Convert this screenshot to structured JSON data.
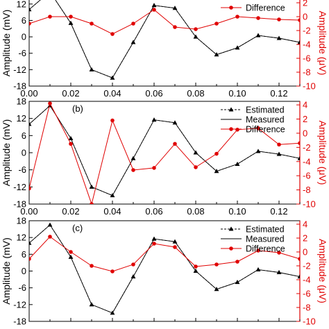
{
  "chart_data": [
    {
      "type": "line",
      "panel_label": "",
      "x_axis": {
        "lim": [
          0.0,
          0.13
        ],
        "ticks": [
          0.0,
          0.02,
          0.04,
          0.06,
          0.08,
          0.1,
          0.12
        ],
        "tick_labels": [
          "0.00",
          "0.02",
          "0.04",
          "0.06",
          "0.08",
          "0.10",
          "0.12"
        ]
      },
      "y_left": {
        "label": "Amplitude (mV)",
        "lim": [
          -18,
          18
        ],
        "ticks": [
          12,
          6,
          0,
          -6,
          -12,
          -18
        ],
        "tick_labels": [
          "12",
          "6",
          "0",
          "-6",
          "-12",
          "-18"
        ]
      },
      "y_right": {
        "label": "Amplitude (μV)",
        "lim": [
          -10,
          4
        ],
        "ticks": [
          2,
          0,
          -2,
          -4,
          -6,
          -8,
          -10
        ],
        "tick_labels": [
          "2",
          "0",
          "-2",
          "-4",
          "-6",
          "-8",
          "-10"
        ],
        "color": "#e00000"
      },
      "legend": {
        "position": "top-right",
        "entries": [
          "Difference"
        ]
      },
      "series": [
        {
          "name": "Estimated",
          "axis": "left",
          "color": "#000000",
          "marker": "triangle",
          "line": "dash",
          "x": [
            0.0,
            0.01,
            0.02,
            0.03,
            0.04,
            0.05,
            0.06,
            0.07,
            0.08,
            0.09,
            0.1,
            0.11,
            0.12,
            0.13
          ],
          "y": [
            10,
            16.5,
            5,
            -12,
            -15,
            -2,
            11.5,
            10.5,
            0,
            -6.5,
            -4,
            0.5,
            -0.5,
            -2
          ]
        },
        {
          "name": "Measured",
          "axis": "left",
          "color": "#000000",
          "marker": "none",
          "line": "solid",
          "x": [
            0.0,
            0.01,
            0.02,
            0.03,
            0.04,
            0.05,
            0.06,
            0.07,
            0.08,
            0.09,
            0.1,
            0.11,
            0.12,
            0.13
          ],
          "y": [
            10,
            16.5,
            5,
            -12,
            -15,
            -2,
            11.5,
            10.5,
            0,
            -6.5,
            -4,
            0.5,
            -0.5,
            -2
          ]
        },
        {
          "name": "Difference",
          "axis": "right",
          "color": "#e00000",
          "marker": "circle",
          "line": "solid",
          "x": [
            0.0,
            0.01,
            0.02,
            0.03,
            0.04,
            0.05,
            0.06,
            0.07,
            0.08,
            0.09,
            0.1,
            0.11,
            0.12,
            0.13
          ],
          "y": [
            -1.0,
            0.0,
            0.0,
            -1.0,
            -2.5,
            -1.0,
            1.0,
            -1.5,
            -1.8,
            -1.0,
            0.0,
            -0.2,
            -0.4,
            -0.5
          ]
        }
      ]
    },
    {
      "type": "line",
      "panel_label": "(b)",
      "x_axis": {
        "lim": [
          0.0,
          0.13
        ],
        "ticks": [
          0.0,
          0.02,
          0.04,
          0.06,
          0.08,
          0.1,
          0.12
        ],
        "tick_labels": [
          "0.00",
          "0.02",
          "0.04",
          "0.06",
          "0.08",
          "0.10",
          "0.12"
        ]
      },
      "y_left": {
        "label": "Amplitude (mV)",
        "lim": [
          -18,
          18
        ],
        "ticks": [
          18,
          12,
          6,
          0,
          -6,
          -12,
          -18
        ],
        "tick_labels": [
          "18",
          "12",
          "6",
          "0",
          "-6",
          "-12",
          "-18"
        ]
      },
      "y_right": {
        "label": "Amplitude (μV)",
        "lim": [
          -10,
          4.5
        ],
        "ticks": [
          4,
          2,
          0,
          -2,
          -4,
          -6,
          -8,
          -10
        ],
        "tick_labels": [
          "4",
          "2",
          "0",
          "-2",
          "-4",
          "-6",
          "-8",
          "-10"
        ],
        "color": "#e00000"
      },
      "legend": {
        "position": "top-right",
        "entries": [
          "Estimated",
          "Measured",
          "Difference"
        ]
      },
      "series": [
        {
          "name": "Estimated",
          "axis": "left",
          "color": "#000000",
          "marker": "triangle",
          "line": "dash",
          "x": [
            0.0,
            0.01,
            0.02,
            0.03,
            0.04,
            0.05,
            0.06,
            0.07,
            0.08,
            0.09,
            0.1,
            0.11,
            0.12,
            0.13
          ],
          "y": [
            10,
            16.5,
            5,
            -12,
            -15,
            -2,
            11.5,
            10.5,
            0,
            -6.5,
            -4,
            0.5,
            -0.5,
            -2
          ]
        },
        {
          "name": "Measured",
          "axis": "left",
          "color": "#000000",
          "marker": "none",
          "line": "solid",
          "x": [
            0.0,
            0.01,
            0.02,
            0.03,
            0.04,
            0.05,
            0.06,
            0.07,
            0.08,
            0.09,
            0.1,
            0.11,
            0.12,
            0.13
          ],
          "y": [
            10,
            16.5,
            5,
            -12,
            -15,
            -2,
            11.5,
            10.5,
            0,
            -6.5,
            -4,
            0.5,
            -0.5,
            -2
          ]
        },
        {
          "name": "Difference",
          "axis": "right",
          "color": "#e00000",
          "marker": "circle",
          "line": "solid",
          "x": [
            0.0,
            0.01,
            0.02,
            0.03,
            0.04,
            0.05,
            0.06,
            0.07,
            0.08,
            0.09,
            0.1,
            0.11,
            0.12,
            0.13
          ],
          "y": [
            -7.8,
            4.2,
            -1.5,
            -10,
            1.8,
            -5.2,
            -4.9,
            -1.5,
            -4.8,
            -2.9,
            0.5,
            0.7,
            -1.6,
            -1.4
          ]
        }
      ]
    },
    {
      "type": "line",
      "panel_label": "(c)",
      "x_axis": {
        "lim": [
          0.0,
          0.13
        ],
        "ticks": [
          0.0,
          0.02,
          0.04,
          0.06,
          0.08,
          0.1,
          0.12
        ],
        "tick_labels": [],
        "tick_labels_cut_off": true
      },
      "y_left": {
        "label": "Amplitude (mV)",
        "lim": [
          -18,
          18
        ],
        "ticks": [
          18,
          12,
          6,
          0,
          -6,
          -12,
          -18
        ],
        "tick_labels": [
          "18",
          "12",
          "6",
          "0",
          "-6",
          "-12",
          "-18"
        ]
      },
      "y_right": {
        "label": "Amplitude (μV)",
        "lim": [
          -10,
          4.5
        ],
        "ticks": [
          4,
          2,
          0,
          -2,
          -4,
          -6,
          -8,
          -10
        ],
        "tick_labels": [
          "4",
          "2",
          "0",
          "-2",
          "-4",
          "-6",
          "-8",
          "-10"
        ],
        "color": "#e00000"
      },
      "legend": {
        "position": "top-right",
        "entries": [
          "Estimated",
          "Measured",
          "Difference"
        ]
      },
      "series": [
        {
          "name": "Estimated",
          "axis": "left",
          "color": "#000000",
          "marker": "triangle",
          "line": "dash",
          "x": [
            0.0,
            0.01,
            0.02,
            0.03,
            0.04,
            0.05,
            0.06,
            0.07,
            0.08,
            0.09,
            0.1,
            0.11,
            0.12,
            0.13
          ],
          "y": [
            10,
            16.5,
            5,
            -12,
            -15,
            -2,
            11.5,
            10.5,
            0,
            -6.5,
            -4,
            0.5,
            -0.5,
            -2
          ]
        },
        {
          "name": "Measured",
          "axis": "left",
          "color": "#000000",
          "marker": "none",
          "line": "solid",
          "x": [
            0.0,
            0.01,
            0.02,
            0.03,
            0.04,
            0.05,
            0.06,
            0.07,
            0.08,
            0.09,
            0.1,
            0.11,
            0.12,
            0.13
          ],
          "y": [
            10,
            16.5,
            5,
            -12,
            -15,
            -2,
            11.5,
            10.5,
            0,
            -6.5,
            -4,
            0.5,
            -0.5,
            -2
          ]
        },
        {
          "name": "Difference",
          "axis": "right",
          "color": "#e00000",
          "marker": "circle",
          "line": "solid",
          "x": [
            0.0,
            0.01,
            0.02,
            0.03,
            0.04,
            0.05,
            0.06,
            0.07,
            0.08,
            0.09,
            0.1,
            0.11,
            0.12,
            0.13
          ],
          "y": [
            -1.0,
            2.2,
            0.0,
            -2.0,
            -2.8,
            -1.8,
            1.2,
            0.7,
            -2.1,
            -1.8,
            -1.4,
            0.2,
            -0.1,
            -1.0
          ]
        }
      ]
    }
  ]
}
